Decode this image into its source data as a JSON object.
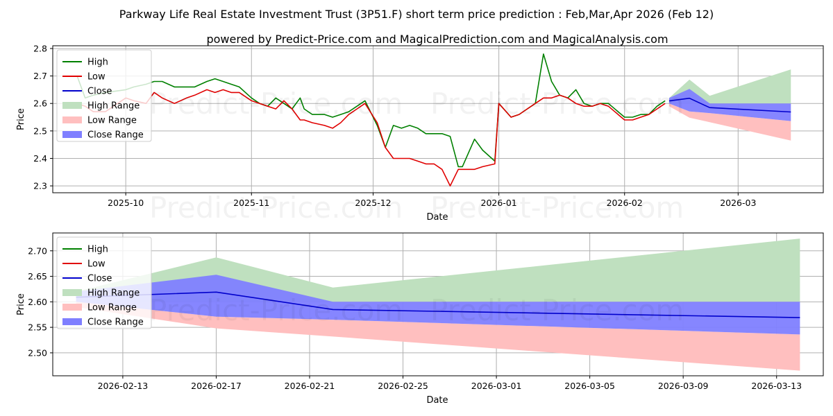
{
  "title": "Parkway Life Real Estate Investment Trust (3P51.F) short term price prediction : Feb,Mar,Apr 2026 (Feb 12)",
  "subtitle": "powered by Predict-Price.com and MagicalPrediction.com and MagicalAnalysis.com",
  "watermark": "Predict-Price.com",
  "colors": {
    "high": "#008000",
    "low": "#e00000",
    "close": "#0000cc",
    "high_range": "#bfe0bf",
    "low_range": "#ffbfbf",
    "close_range": "#7f7fff"
  },
  "chart_data": [
    {
      "type": "line",
      "name": "history-and-forecast",
      "xlabel": "Date",
      "ylabel": "Price",
      "x_range": [
        "2025-09-13",
        "2026-03-22"
      ],
      "ylim": [
        2.275,
        2.81
      ],
      "y_ticks": [
        2.3,
        2.4,
        2.5,
        2.6,
        2.7,
        2.8
      ],
      "y_tick_labels": [
        "2.3",
        "2.4",
        "2.5",
        "2.6",
        "2.7",
        "2.8"
      ],
      "x_ticks": [
        "2025-10-01",
        "2025-11-01",
        "2025-12-01",
        "2026-01-01",
        "2026-02-01",
        "2026-03-01"
      ],
      "x_tick_labels": [
        "2025-10",
        "2025-11",
        "2025-12",
        "2026-01",
        "2026-02",
        "2026-03"
      ],
      "grid": true,
      "legend_position": "top-left",
      "legend": [
        "High",
        "Low",
        "Close",
        "High Range",
        "Low Range",
        "Close Range"
      ],
      "series": [
        {
          "name": "High",
          "dates": [
            "2025-09-19",
            "2025-09-21",
            "2025-09-23",
            "2025-09-26",
            "2025-10-01",
            "2025-10-03",
            "2025-10-06",
            "2025-10-08",
            "2025-10-10",
            "2025-10-13",
            "2025-10-16",
            "2025-10-18",
            "2025-10-21",
            "2025-10-23",
            "2025-10-25",
            "2025-10-27",
            "2025-10-29",
            "2025-11-01",
            "2025-11-03",
            "2025-11-05",
            "2025-11-07",
            "2025-11-09",
            "2025-11-11",
            "2025-11-13",
            "2025-11-14",
            "2025-11-16",
            "2025-11-19",
            "2025-11-21",
            "2025-11-23",
            "2025-11-25",
            "2025-11-27",
            "2025-11-29",
            "2025-12-02",
            "2025-12-04",
            "2025-12-06",
            "2025-12-08",
            "2025-12-10",
            "2025-12-12",
            "2025-12-14",
            "2025-12-16",
            "2025-12-18",
            "2025-12-20",
            "2025-12-22",
            "2025-12-23",
            "2025-12-26",
            "2025-12-28",
            "2025-12-31",
            "2026-01-01",
            "2026-01-04",
            "2026-01-06",
            "2026-01-08",
            "2026-01-10",
            "2026-01-12",
            "2026-01-14",
            "2026-01-16",
            "2026-01-18",
            "2026-01-20",
            "2026-01-22",
            "2026-01-24",
            "2026-01-26",
            "2026-01-28",
            "2026-02-01",
            "2026-02-03",
            "2026-02-05",
            "2026-02-07",
            "2026-02-09",
            "2026-02-11"
          ],
          "values": [
            2.7,
            2.62,
            2.63,
            2.64,
            2.65,
            2.66,
            2.67,
            2.68,
            2.68,
            2.66,
            2.66,
            2.66,
            2.68,
            2.69,
            2.68,
            2.67,
            2.66,
            2.62,
            2.6,
            2.59,
            2.62,
            2.6,
            2.58,
            2.62,
            2.58,
            2.56,
            2.56,
            2.55,
            2.56,
            2.57,
            2.59,
            2.61,
            2.52,
            2.44,
            2.52,
            2.51,
            2.52,
            2.51,
            2.49,
            2.49,
            2.49,
            2.48,
            2.37,
            2.37,
            2.47,
            2.43,
            2.39,
            2.6,
            2.55,
            2.56,
            2.58,
            2.6,
            2.78,
            2.68,
            2.63,
            2.62,
            2.65,
            2.6,
            2.59,
            2.6,
            2.6,
            2.55,
            2.55,
            2.56,
            2.56,
            2.59,
            2.61
          ]
        },
        {
          "name": "Low",
          "dates": [
            "2025-09-19",
            "2025-09-21",
            "2025-09-23",
            "2025-09-26",
            "2025-10-01",
            "2025-10-03",
            "2025-10-06",
            "2025-10-08",
            "2025-10-10",
            "2025-10-13",
            "2025-10-16",
            "2025-10-18",
            "2025-10-21",
            "2025-10-23",
            "2025-10-25",
            "2025-10-27",
            "2025-10-29",
            "2025-11-01",
            "2025-11-03",
            "2025-11-05",
            "2025-11-07",
            "2025-11-09",
            "2025-11-11",
            "2025-11-13",
            "2025-11-14",
            "2025-11-16",
            "2025-11-19",
            "2025-11-21",
            "2025-11-23",
            "2025-11-25",
            "2025-11-27",
            "2025-11-29",
            "2025-12-02",
            "2025-12-04",
            "2025-12-06",
            "2025-12-08",
            "2025-12-10",
            "2025-12-12",
            "2025-12-14",
            "2025-12-16",
            "2025-12-18",
            "2025-12-20",
            "2025-12-22",
            "2025-12-23",
            "2025-12-26",
            "2025-12-28",
            "2025-12-31",
            "2026-01-01",
            "2026-01-04",
            "2026-01-06",
            "2026-01-08",
            "2026-01-10",
            "2026-01-12",
            "2026-01-14",
            "2026-01-16",
            "2026-01-18",
            "2026-01-20",
            "2026-01-22",
            "2026-01-24",
            "2026-01-26",
            "2026-01-28",
            "2026-02-01",
            "2026-02-03",
            "2026-02-05",
            "2026-02-07",
            "2026-02-09",
            "2026-02-11"
          ],
          "values": [
            2.6,
            2.59,
            2.57,
            2.57,
            2.62,
            2.61,
            2.6,
            2.64,
            2.62,
            2.6,
            2.62,
            2.63,
            2.65,
            2.64,
            2.65,
            2.64,
            2.64,
            2.61,
            2.6,
            2.59,
            2.58,
            2.61,
            2.58,
            2.54,
            2.54,
            2.53,
            2.52,
            2.51,
            2.53,
            2.56,
            2.58,
            2.6,
            2.53,
            2.44,
            2.4,
            2.4,
            2.4,
            2.39,
            2.38,
            2.38,
            2.36,
            2.3,
            2.36,
            2.36,
            2.36,
            2.37,
            2.38,
            2.6,
            2.55,
            2.56,
            2.58,
            2.6,
            2.62,
            2.62,
            2.63,
            2.62,
            2.6,
            2.59,
            2.59,
            2.6,
            2.59,
            2.54,
            2.54,
            2.55,
            2.56,
            2.58,
            2.6
          ]
        },
        {
          "name": "Close",
          "dates": [
            "2026-02-12",
            "2026-02-17",
            "2026-02-22",
            "2026-03-14"
          ],
          "values": [
            2.609,
            2.619,
            2.585,
            2.569
          ]
        },
        {
          "name": "High Range",
          "dates": [
            "2026-02-12",
            "2026-02-17",
            "2026-02-22",
            "2026-03-14"
          ],
          "upper": [
            2.62,
            2.687,
            2.628,
            2.724
          ],
          "lower": [
            2.6,
            2.6,
            2.6,
            2.6
          ]
        },
        {
          "name": "Low Range",
          "dates": [
            "2026-02-12",
            "2026-02-17",
            "2026-02-22",
            "2026-03-14"
          ],
          "upper": [
            2.6,
            2.571,
            2.565,
            2.536
          ],
          "lower": [
            2.59,
            2.548,
            2.532,
            2.465
          ]
        },
        {
          "name": "Close Range",
          "dates": [
            "2026-02-12",
            "2026-02-17",
            "2026-02-22",
            "2026-03-14"
          ],
          "upper": [
            2.62,
            2.653,
            2.6,
            2.6
          ],
          "lower": [
            2.6,
            2.571,
            2.565,
            2.536
          ]
        }
      ]
    },
    {
      "type": "line",
      "name": "forecast-zoom",
      "xlabel": "Date",
      "ylabel": "Price",
      "x_range": [
        "2026-02-10",
        "2026-03-15"
      ],
      "ylim": [
        2.455,
        2.735
      ],
      "y_ticks": [
        2.5,
        2.55,
        2.6,
        2.65,
        2.7
      ],
      "y_tick_labels": [
        "2.50",
        "2.55",
        "2.60",
        "2.65",
        "2.70"
      ],
      "x_ticks": [
        "2026-02-13",
        "2026-02-17",
        "2026-02-21",
        "2026-02-25",
        "2026-03-01",
        "2026-03-05",
        "2026-03-09",
        "2026-03-13"
      ],
      "x_tick_labels": [
        "2026-02-13",
        "2026-02-17",
        "2026-02-21",
        "2026-02-25",
        "2026-03-01",
        "2026-03-05",
        "2026-03-09",
        "2026-03-13"
      ],
      "grid": true,
      "legend_position": "top-left",
      "legend": [
        "High",
        "Low",
        "Close",
        "High Range",
        "Low Range",
        "Close Range"
      ],
      "series": [
        {
          "name": "Close",
          "dates": [
            "2026-02-11",
            "2026-02-17",
            "2026-02-22",
            "2026-03-14"
          ],
          "values": [
            2.609,
            2.619,
            2.585,
            2.569
          ]
        },
        {
          "name": "High Range",
          "dates": [
            "2026-02-11",
            "2026-02-17",
            "2026-02-22",
            "2026-03-14"
          ],
          "upper": [
            2.62,
            2.687,
            2.628,
            2.724
          ],
          "lower": [
            2.6,
            2.6,
            2.6,
            2.6
          ]
        },
        {
          "name": "Low Range",
          "dates": [
            "2026-02-11",
            "2026-02-17",
            "2026-02-22",
            "2026-03-14"
          ],
          "upper": [
            2.6,
            2.571,
            2.565,
            2.536
          ],
          "lower": [
            2.59,
            2.548,
            2.532,
            2.465
          ]
        },
        {
          "name": "Close Range",
          "dates": [
            "2026-02-11",
            "2026-02-17",
            "2026-02-22",
            "2026-03-14"
          ],
          "upper": [
            2.62,
            2.653,
            2.6,
            2.6
          ],
          "lower": [
            2.6,
            2.571,
            2.565,
            2.536
          ]
        }
      ]
    }
  ]
}
